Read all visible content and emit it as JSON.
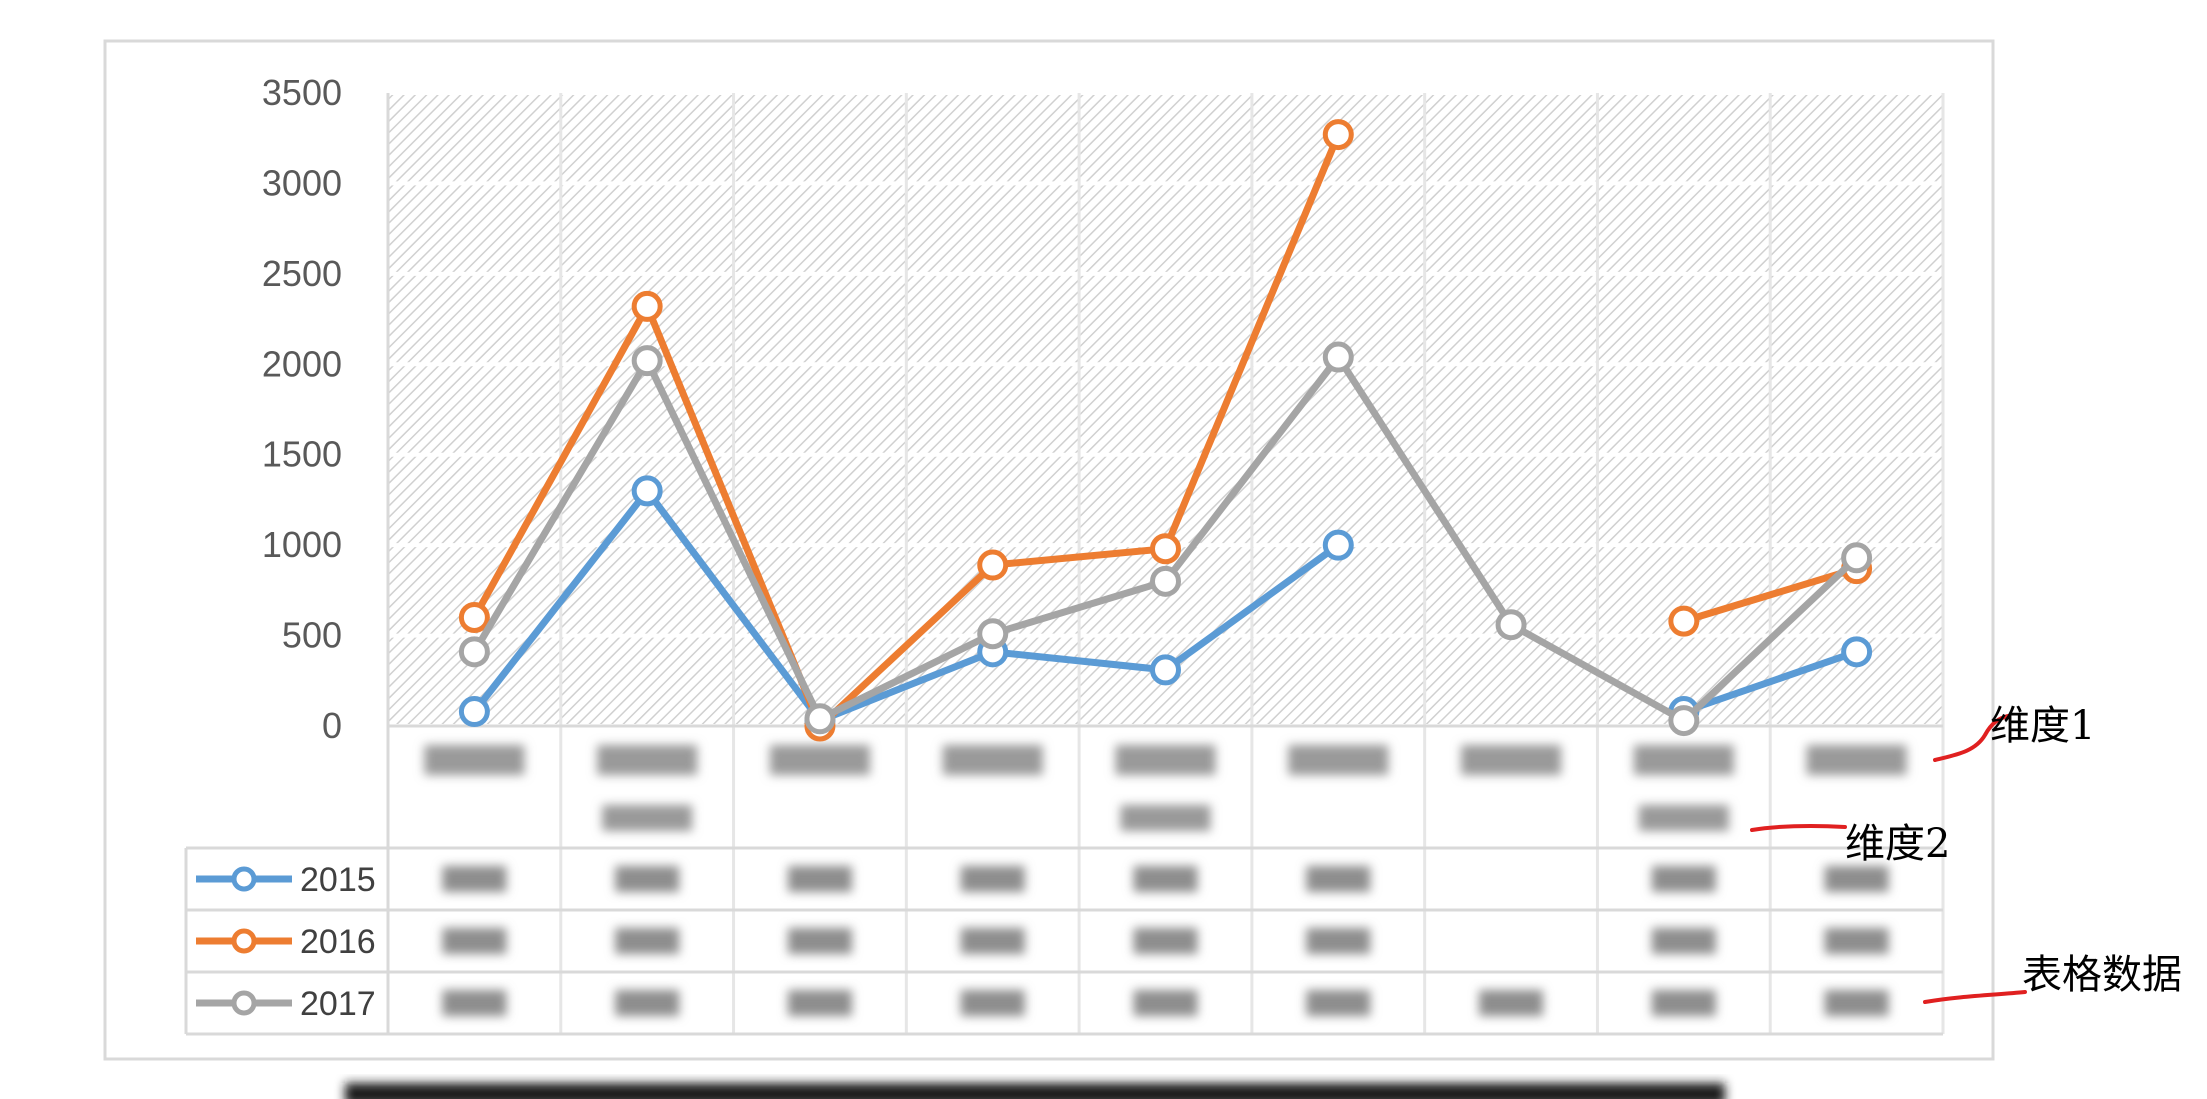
{
  "chart_data": {
    "type": "line",
    "title": "",
    "xlabel": "",
    "ylabel": "",
    "ylim": [
      0,
      3500
    ],
    "yticks": [
      0,
      500,
      1000,
      1500,
      2000,
      2500,
      3000,
      3500
    ],
    "categories": [
      "",
      "",
      "",
      "",
      "",
      "",
      "",
      "",
      ""
    ],
    "grid": true,
    "legend": "data-table-left",
    "series": [
      {
        "name": "2015",
        "color": "#5B9BD5",
        "values": [
          80,
          1300,
          30,
          410,
          310,
          1000,
          null,
          80,
          410
        ]
      },
      {
        "name": "2016",
        "color": "#ED7D31",
        "values": [
          600,
          2320,
          0,
          890,
          980,
          3270,
          null,
          580,
          870
        ]
      },
      {
        "name": "2017",
        "color": "#A5A5A5",
        "values": [
          410,
          2020,
          40,
          510,
          800,
          2040,
          560,
          30,
          930
        ]
      }
    ]
  },
  "annotations": {
    "dimension1": "维度1",
    "dimension2": "维度2",
    "table_data": "表格数据",
    "annotation_color": "#E02020"
  }
}
